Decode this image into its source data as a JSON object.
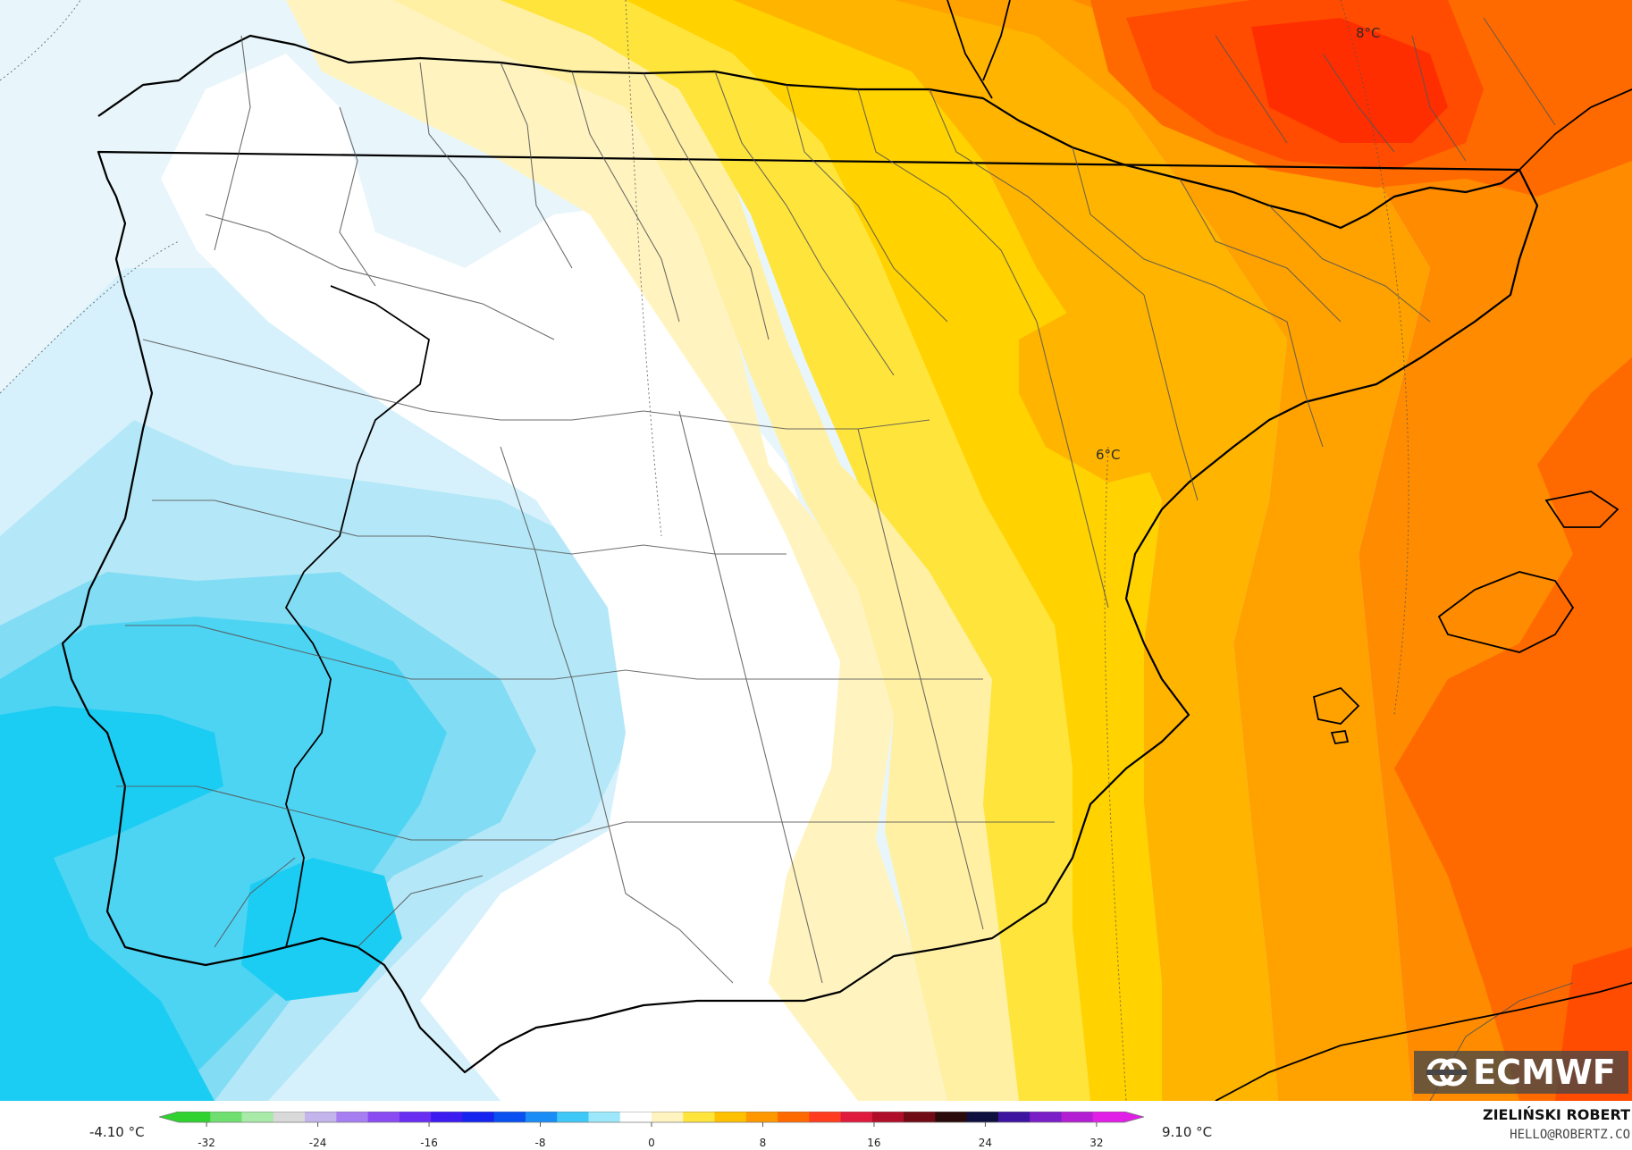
{
  "map": {
    "contour_labels": [
      {
        "id": "label-8c",
        "text": "8°C"
      },
      {
        "id": "label-6c",
        "text": "6°C"
      }
    ],
    "colors": {
      "sea_west_light": "#e8f6fc",
      "very_light_blue": "#d6f1fb",
      "light_blue": "#b4e8f8",
      "mid_blue": "#82dcf4",
      "strong_blue": "#4ed4f3",
      "deep_blue": "#1ccdf3",
      "white": "#ffffff",
      "pale_yellow": "#fff4c0",
      "light_yellow": "#fff0a4",
      "yellow": "#ffe43c",
      "gold": "#ffd200",
      "amber": "#ffb400",
      "orange_light": "#ffa200",
      "orange": "#ff8c00",
      "orange_dark": "#ff6a00",
      "red_orange": "#ff4c00",
      "red": "#ff2e00",
      "coast": "#000000",
      "border": "#555555"
    }
  },
  "logo": {
    "text": "ECMWF",
    "icon": "ecmwf-logo-icon"
  },
  "legend": {
    "min_label": "-4.10 °C",
    "max_label": "9.10 °C",
    "range": [
      -34,
      34
    ],
    "ticks": [
      -32,
      -24,
      -16,
      -8,
      0,
      8,
      16,
      24,
      32
    ],
    "colors": [
      "#2fd22f",
      "#6fdf6f",
      "#a8eaa8",
      "#d9d9d9",
      "#c4b4ec",
      "#a67ef2",
      "#8a4cf2",
      "#6a2ef2",
      "#3b1bf0",
      "#1424ee",
      "#0a50f0",
      "#1a8cf5",
      "#3ec8f8",
      "#9ce8fa",
      "#ffffff",
      "#fff4c0",
      "#ffe43c",
      "#ffc000",
      "#ff9800",
      "#ff6a00",
      "#ff3c1e",
      "#e01a3c",
      "#b00e28",
      "#700a14",
      "#2a0a0a",
      "#101040",
      "#3c14a0",
      "#7a1ec8",
      "#b41ed2",
      "#e01ee6"
    ]
  },
  "credit": {
    "name": "ZIELIŃSKI ROBERT",
    "email": "HELLO@ROBERTZ.CO"
  }
}
